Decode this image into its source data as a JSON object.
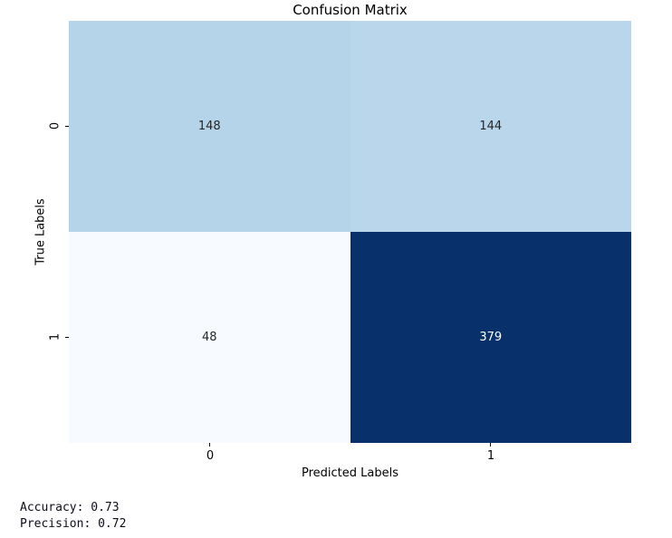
{
  "chart_data": {
    "type": "heatmap",
    "title": "Confusion Matrix",
    "xlabel": "Predicted Labels",
    "ylabel": "True Labels",
    "x_tick_labels": [
      "0",
      "1"
    ],
    "y_tick_labels": [
      "0",
      "1"
    ],
    "matrix": [
      [
        148,
        144
      ],
      [
        48,
        379
      ]
    ],
    "cell_colors": [
      [
        "#b5d4e9",
        "#bad6eb"
      ],
      [
        "#f7fbff",
        "#08306b"
      ]
    ],
    "cell_text_colors": [
      [
        "#262626",
        "#262626"
      ],
      [
        "#262626",
        "#ffffff"
      ]
    ],
    "colormap": "Blues",
    "colorbar": "off",
    "grid": "off",
    "legend_position": "none",
    "value_range": [
      48,
      379
    ]
  },
  "footer": {
    "accuracy_line": "Accuracy: 0.73",
    "precision_line": "Precision: 0.72"
  }
}
